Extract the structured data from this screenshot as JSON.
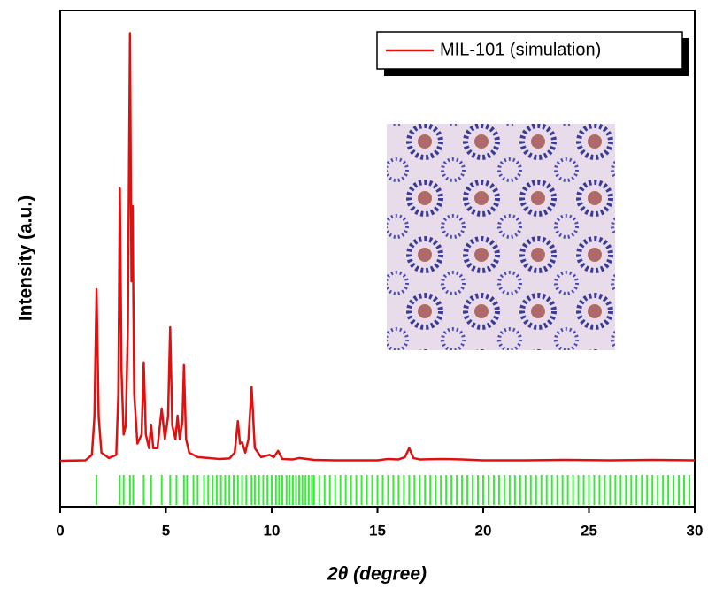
{
  "chart_data": {
    "type": "line",
    "xlabel": "2θ (degree)",
    "ylabel": "Intensity (a.u.)",
    "x": [
      0,
      1.2,
      1.5,
      1.62,
      1.72,
      1.82,
      1.95,
      2.3,
      2.65,
      2.75,
      2.82,
      2.9,
      3.0,
      3.1,
      3.2,
      3.3,
      3.37,
      3.42,
      3.5,
      3.65,
      3.85,
      3.95,
      4.05,
      4.2,
      4.3,
      4.4,
      4.6,
      4.8,
      4.95,
      5.1,
      5.2,
      5.3,
      5.45,
      5.55,
      5.65,
      5.78,
      5.85,
      5.95,
      6.1,
      6.5,
      7.0,
      7.5,
      8.0,
      8.25,
      8.4,
      8.5,
      8.6,
      8.75,
      8.9,
      9.05,
      9.2,
      9.5,
      9.9,
      10.1,
      10.3,
      10.5,
      11.0,
      11.3,
      12,
      13,
      14,
      15,
      15.5,
      16,
      16.3,
      16.5,
      16.7,
      17,
      18,
      19,
      20,
      22,
      24,
      26,
      28,
      30
    ],
    "series": [
      {
        "name": "MIL-101 (simulation)",
        "color": "#e01010",
        "values": [
          0.2,
          0.3,
          1.5,
          10,
          38.2,
          10,
          2,
          0.8,
          1.5,
          15,
          60.6,
          20,
          6,
          8,
          30,
          95,
          40,
          56.7,
          15,
          4,
          6,
          22,
          6,
          3,
          8.2,
          3,
          3,
          11.8,
          5,
          10,
          29.8,
          8,
          5,
          10.2,
          5,
          9,
          21.4,
          5,
          2,
          1,
          0.8,
          0.6,
          0.7,
          2,
          9,
          4,
          4.3,
          2,
          5,
          16.5,
          3,
          1,
          1.5,
          1,
          2.4,
          0.6,
          0.5,
          0.8,
          0.4,
          0.3,
          0.3,
          0.3,
          0.6,
          0.5,
          1,
          3,
          0.8,
          0.5,
          0.6,
          0.5,
          0.3,
          0.3,
          0.4,
          0.3,
          0.4,
          0.3
        ]
      }
    ],
    "reflections": {
      "color": "#33ee33",
      "x": [
        1.72,
        2.82,
        3.0,
        3.3,
        3.45,
        3.95,
        4.3,
        4.8,
        5.2,
        5.5,
        5.85,
        6.0,
        6.3,
        6.5,
        6.8,
        7.0,
        7.2,
        7.4,
        7.6,
        7.8,
        8.0,
        8.2,
        8.4,
        8.6,
        8.8,
        9.05,
        9.2,
        9.4,
        9.6,
        9.8,
        10.0,
        10.2,
        10.35,
        10.5,
        10.7,
        10.85,
        11.0,
        11.15,
        11.3,
        11.45,
        11.6,
        11.75,
        11.9,
        12.0,
        12.25,
        12.5,
        12.75,
        13.0,
        13.25,
        13.5,
        13.75,
        14.0,
        14.25,
        14.5,
        14.75,
        15.0,
        15.25,
        15.5,
        15.75,
        16.0,
        16.25,
        16.5,
        16.75,
        17.0,
        17.25,
        17.5,
        17.75,
        18.0,
        18.25,
        18.5,
        18.75,
        19.0,
        19.25,
        19.5,
        19.75,
        20.0,
        20.25,
        20.5,
        20.75,
        21.0,
        21.25,
        21.5,
        21.75,
        22.0,
        22.25,
        22.5,
        22.75,
        23.0,
        23.25,
        23.5,
        23.75,
        24.0,
        24.25,
        24.5,
        24.75,
        25.0,
        25.25,
        25.5,
        25.75,
        26.0,
        26.25,
        26.5,
        26.75,
        27.0,
        27.25,
        27.5,
        27.75,
        28.0,
        28.25,
        28.5,
        28.75,
        29.0,
        29.25,
        29.5,
        29.75
      ]
    },
    "xlim": [
      0,
      30
    ],
    "xticks": [
      0,
      5,
      10,
      15,
      20,
      25,
      30
    ],
    "ylim": [
      -10,
      100
    ],
    "legend": "upper right"
  }
}
